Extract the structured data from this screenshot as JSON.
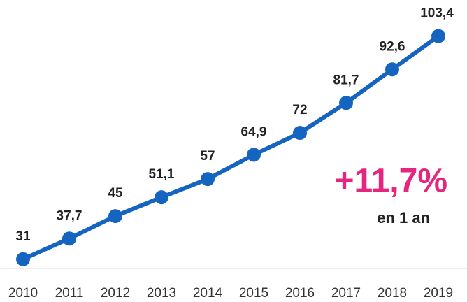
{
  "chart_data": {
    "type": "line",
    "categories": [
      "2010",
      "2011",
      "2012",
      "2013",
      "2014",
      "2015",
      "2016",
      "2017",
      "2018",
      "2019"
    ],
    "values": [
      31,
      37.7,
      45,
      51.1,
      57,
      64.9,
      72,
      81.7,
      92.6,
      103.4
    ],
    "value_labels": [
      "31",
      "37,7",
      "45",
      "51,1",
      "57",
      "64,9",
      "72",
      "81,7",
      "92,6",
      "103,4"
    ],
    "color": "#1565c0",
    "ylim": [
      28,
      104
    ],
    "annotations": [
      "+11,7%",
      "en 1 an"
    ]
  }
}
